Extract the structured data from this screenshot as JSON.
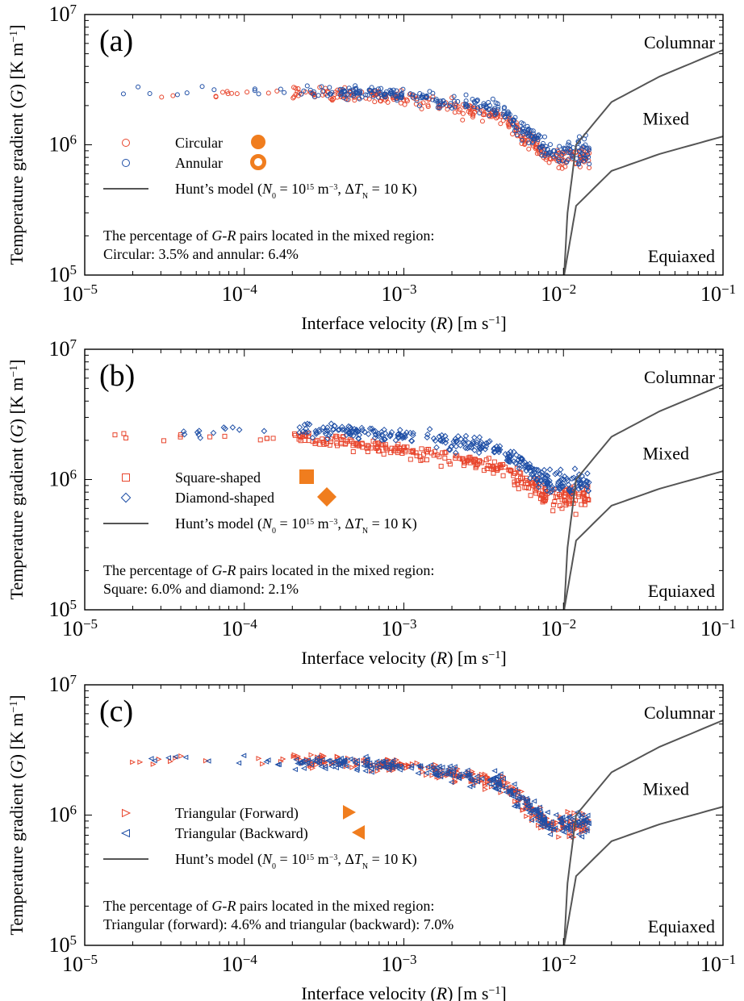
{
  "figure": {
    "colors": {
      "red": "#e8452c",
      "blue": "#1f4fa6",
      "orange": "#f07d1e",
      "hunt": "#555555"
    },
    "x_tick_labels": [
      {
        "base": "10",
        "exp": "−5"
      },
      {
        "base": "10",
        "exp": "−4"
      },
      {
        "base": "10",
        "exp": "−3"
      },
      {
        "base": "10",
        "exp": "−2"
      },
      {
        "base": "10",
        "exp": "−1"
      }
    ],
    "y_tick_labels": [
      {
        "base": "10",
        "exp": "5"
      },
      {
        "base": "10",
        "exp": "6"
      },
      {
        "base": "10",
        "exp": "7"
      }
    ]
  },
  "chart_data": [
    {
      "type": "scatter",
      "panel_label": "(a)",
      "xlabel": "Interface velocity (R) [m s−1]",
      "ylabel": "Temperature gradient (G) [K m−1]",
      "x_scale": "log",
      "y_scale": "log",
      "xlim": [
        1e-05,
        0.1
      ],
      "ylim": [
        100000,
        10000000
      ],
      "grid": false,
      "region_labels": [
        "Columnar",
        "Mixed",
        "Equiaxed"
      ],
      "legend": [
        {
          "name": "Circular",
          "marker": "circle-open",
          "color": "red",
          "icon": "circle-filled"
        },
        {
          "name": "Annular",
          "marker": "circle-open",
          "color": "blue",
          "icon": "ring"
        },
        {
          "name": "Hunt’s model",
          "math": [
            "(N",
            "0",
            " = 10",
            "15",
            " m",
            "−3",
            ", ΔT",
            "N",
            " = 10 K)"
          ],
          "line": true
        }
      ],
      "note_line1": [
        "The percentage of ",
        "G-R",
        " pairs located in the mixed region:"
      ],
      "note_line2": "Circular: 3.5% and annular: 6.4%",
      "hunt_model": {
        "N0": "10^15 m^-3",
        "dTN": "10 K",
        "columnar_mixed_boundary": [
          [
            0.0101,
            100000
          ],
          [
            0.0106,
            300000
          ],
          [
            0.012,
            1000000
          ],
          [
            0.02,
            2130000
          ],
          [
            0.04,
            3340000
          ],
          [
            0.1,
            5340000
          ]
        ],
        "mixed_equiaxed_boundary": [
          [
            0.0101,
            100000
          ],
          [
            0.012,
            340000
          ],
          [
            0.02,
            630000
          ],
          [
            0.04,
            850000
          ],
          [
            0.1,
            1160000
          ]
        ]
      },
      "series": [
        {
          "name": "Circular",
          "color": "red",
          "marker": "circle-open",
          "bands": [
            [
              3e-05,
              0.0002,
              2400000,
              0.08
            ],
            [
              0.0002,
              0.001,
              2500000,
              0.1
            ],
            [
              0.001,
              0.004,
              2300000,
              0.12
            ],
            [
              0.004,
              0.008,
              1700000,
              0.15
            ],
            [
              0.008,
              0.0145,
              800000,
              0.18
            ]
          ]
        },
        {
          "name": "Annular",
          "color": "blue",
          "marker": "circle-open",
          "bands": [
            [
              1.7e-05,
              0.0002,
              2600000,
              0.08
            ],
            [
              0.0002,
              0.001,
              2600000,
              0.1
            ],
            [
              0.001,
              0.004,
              2400000,
              0.12
            ],
            [
              0.004,
              0.008,
              1900000,
              0.15
            ],
            [
              0.008,
              0.0145,
              900000,
              0.18
            ]
          ]
        }
      ]
    },
    {
      "type": "scatter",
      "panel_label": "(b)",
      "xlabel": "Interface velocity (R) [m s−1]",
      "ylabel": "Temperature gradient (G) [K m−1]",
      "x_scale": "log",
      "y_scale": "log",
      "xlim": [
        1e-05,
        0.1
      ],
      "ylim": [
        100000,
        10000000
      ],
      "grid": false,
      "region_labels": [
        "Columnar",
        "Mixed",
        "Equiaxed"
      ],
      "legend": [
        {
          "name": "Square-shaped",
          "marker": "square-open",
          "color": "red",
          "icon": "square-filled"
        },
        {
          "name": "Diamond-shaped",
          "marker": "diamond-open",
          "color": "blue",
          "icon": "diamond-filled"
        },
        {
          "name": "Hunt’s model",
          "math": [
            "(N",
            "0",
            " = 10",
            "15",
            " m",
            "−3",
            ", ΔT",
            "N",
            " = 10 K)"
          ],
          "line": true
        }
      ],
      "note_line1": [
        "The percentage of ",
        "G-R",
        " pairs located in the mixed region:"
      ],
      "note_line2": "Square: 6.0% and diamond: 2.1%",
      "hunt_model": {
        "N0": "10^15 m^-3",
        "dTN": "10 K",
        "columnar_mixed_boundary": [
          [
            0.0101,
            100000
          ],
          [
            0.0106,
            300000
          ],
          [
            0.012,
            1000000
          ],
          [
            0.02,
            2130000
          ],
          [
            0.04,
            3340000
          ],
          [
            0.1,
            5340000
          ]
        ],
        "mixed_equiaxed_boundary": [
          [
            0.0101,
            100000
          ],
          [
            0.012,
            340000
          ],
          [
            0.02,
            630000
          ],
          [
            0.04,
            850000
          ],
          [
            0.1,
            1160000
          ]
        ]
      },
      "series": [
        {
          "name": "Square-shaped",
          "color": "red",
          "marker": "square-open",
          "bands": [
            [
              1.4e-05,
              0.0002,
              2150000,
              0.08
            ],
            [
              0.0002,
              0.001,
              2100000,
              0.1
            ],
            [
              0.001,
              0.004,
              1700000,
              0.12
            ],
            [
              0.004,
              0.008,
              1250000,
              0.15
            ],
            [
              0.008,
              0.0145,
              750000,
              0.18
            ]
          ]
        },
        {
          "name": "Diamond-shaped",
          "color": "blue",
          "marker": "diamond-open",
          "bands": [
            [
              4e-05,
              0.0002,
              2250000,
              0.08
            ],
            [
              0.0002,
              0.001,
              2500000,
              0.1
            ],
            [
              0.001,
              0.004,
              2200000,
              0.12
            ],
            [
              0.004,
              0.008,
              1700000,
              0.15
            ],
            [
              0.008,
              0.0145,
              950000,
              0.18
            ]
          ]
        }
      ]
    },
    {
      "type": "scatter",
      "panel_label": "(c)",
      "xlabel": "Interface velocity (R) [m s−1]",
      "ylabel": "Temperature gradient (G) [K m−1]",
      "x_scale": "log",
      "y_scale": "log",
      "xlim": [
        1e-05,
        0.1
      ],
      "ylim": [
        100000,
        10000000
      ],
      "grid": false,
      "region_labels": [
        "Columnar",
        "Mixed",
        "Equiaxed"
      ],
      "legend": [
        {
          "name": "Triangular (Forward)",
          "marker": "triangle-right-open",
          "color": "red",
          "icon": "triangle-right-filled"
        },
        {
          "name": "Triangular (Backward)",
          "marker": "triangle-left-open",
          "color": "blue",
          "icon": "triangle-left-filled"
        },
        {
          "name": "Hunt’s model",
          "math": [
            "(N",
            "0",
            " = 10",
            "15",
            " m",
            "−3",
            ", ΔT",
            "N",
            " = 10 K)"
          ],
          "line": true
        }
      ],
      "note_line1": [
        "The percentage of ",
        "G-R",
        " pairs located in the mixed region:"
      ],
      "note_line2": "Triangular (forward): 4.6% and triangular (backward): 7.0%",
      "hunt_model": {
        "N0": "10^15 m^-3",
        "dTN": "10 K",
        "columnar_mixed_boundary": [
          [
            0.0101,
            100000
          ],
          [
            0.0106,
            300000
          ],
          [
            0.012,
            1000000
          ],
          [
            0.02,
            2130000
          ],
          [
            0.04,
            3340000
          ],
          [
            0.1,
            5340000
          ]
        ],
        "mixed_equiaxed_boundary": [
          [
            0.0101,
            100000
          ],
          [
            0.012,
            340000
          ],
          [
            0.02,
            630000
          ],
          [
            0.04,
            850000
          ],
          [
            0.1,
            1160000
          ]
        ]
      },
      "series": [
        {
          "name": "Triangular (Forward)",
          "color": "red",
          "marker": "triangle-right-open",
          "bands": [
            [
              1.8e-05,
              0.0002,
              2600000,
              0.08
            ],
            [
              0.0002,
              0.001,
              2650000,
              0.1
            ],
            [
              0.001,
              0.004,
              2400000,
              0.12
            ],
            [
              0.004,
              0.008,
              1800000,
              0.15
            ],
            [
              0.008,
              0.0145,
              850000,
              0.18
            ]
          ]
        },
        {
          "name": "Triangular (Backward)",
          "color": "blue",
          "marker": "triangle-left-open",
          "bands": [
            [
              2e-05,
              0.0002,
              2700000,
              0.08
            ],
            [
              0.0002,
              0.001,
              2600000,
              0.1
            ],
            [
              0.001,
              0.004,
              2400000,
              0.12
            ],
            [
              0.004,
              0.008,
              1800000,
              0.15
            ],
            [
              0.008,
              0.0145,
              850000,
              0.18
            ]
          ]
        }
      ]
    }
  ]
}
